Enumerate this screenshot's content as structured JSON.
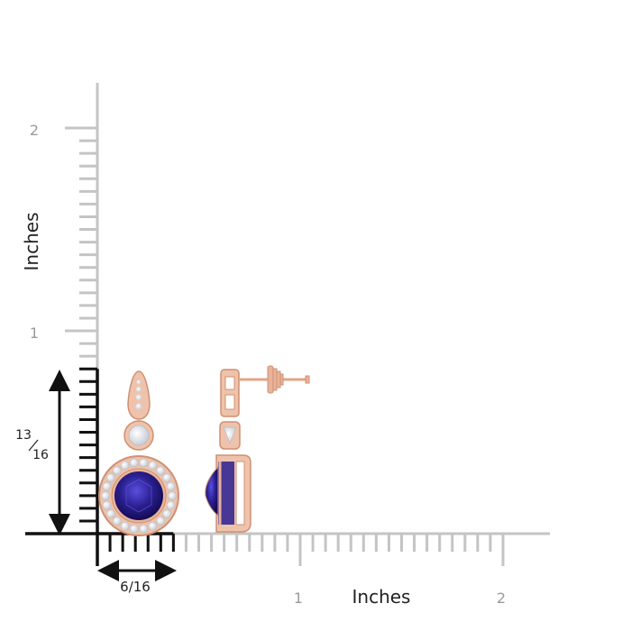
{
  "ruler": {
    "y_axis_title": "Inches",
    "x_axis_title": "Inches",
    "y_tick_1": "1",
    "y_tick_2": "2",
    "x_tick_1": "1",
    "x_tick_2": "2",
    "gray_color": "#c4c4c4",
    "black_color": "#111111"
  },
  "dimensions": {
    "height_numerator": "13",
    "height_denominator": "16",
    "width_label": "6/16"
  },
  "product": {
    "metal_color": "#e8b39a",
    "gem_color": "#2a1f8f",
    "diamond_color": "#f4f4f8"
  }
}
